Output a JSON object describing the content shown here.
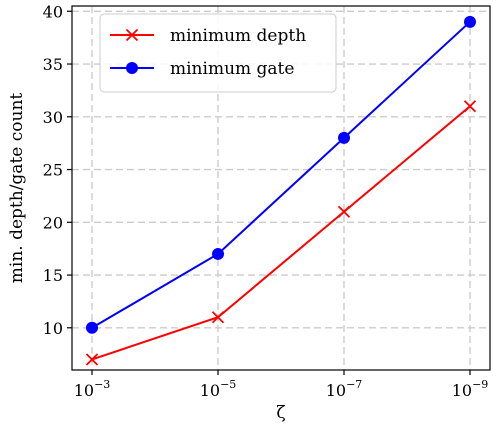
{
  "chart_data": {
    "type": "line",
    "categories": [
      {
        "base": "10",
        "exp": "−3"
      },
      {
        "base": "10",
        "exp": "−5"
      },
      {
        "base": "10",
        "exp": "−7"
      },
      {
        "base": "10",
        "exp": "−9"
      }
    ],
    "series": [
      {
        "name": "minimum depth",
        "values": [
          7,
          11,
          21,
          31
        ],
        "color": "#ff0000",
        "marker": "x"
      },
      {
        "name": "minimum gate",
        "values": [
          10,
          17,
          28,
          39
        ],
        "color": "#0000ff",
        "marker": "circle"
      }
    ],
    "xlabel": "ζ",
    "ylabel": "min. depth/gate count",
    "ylim": [
      6,
      40.5
    ],
    "yticks": [
      10,
      15,
      20,
      25,
      30,
      35,
      40
    ],
    "grid": true,
    "legend_position": "top-left"
  }
}
